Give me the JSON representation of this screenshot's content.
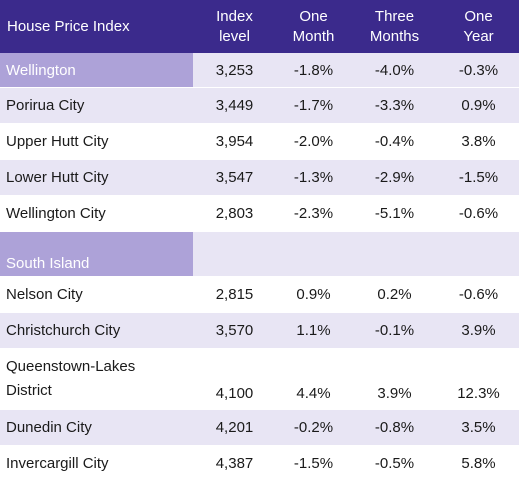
{
  "headers": {
    "name": "House Price Index",
    "index": [
      "Index",
      "level"
    ],
    "one_month": [
      "One",
      "Month"
    ],
    "three_months": [
      "Three",
      "Months"
    ],
    "one_year": [
      "One",
      "Year"
    ]
  },
  "regions": [
    {
      "name": "Wellington",
      "summary": {
        "index": "3,253",
        "one_month": "-1.8%",
        "three_months": "-4.0%",
        "one_year": "-0.3%"
      },
      "rows": [
        {
          "name": "Porirua City",
          "index": "3,449",
          "one_month": "-1.7%",
          "three_months": "-3.3%",
          "one_year": "0.9%"
        },
        {
          "name": "Upper Hutt City",
          "index": "3,954",
          "one_month": "-2.0%",
          "three_months": "-0.4%",
          "one_year": "3.8%"
        },
        {
          "name": "Lower Hutt City",
          "index": "3,547",
          "one_month": "-1.3%",
          "three_months": "-2.9%",
          "one_year": "-1.5%"
        },
        {
          "name": "Wellington City",
          "index": "2,803",
          "one_month": "-2.3%",
          "three_months": "-5.1%",
          "one_year": "-0.6%"
        }
      ]
    },
    {
      "name": "South Island",
      "rows": [
        {
          "name": "Nelson City",
          "index": "2,815",
          "one_month": "0.9%",
          "three_months": "0.2%",
          "one_year": "-0.6%"
        },
        {
          "name": "Christchurch City",
          "index": "3,570",
          "one_month": "1.1%",
          "three_months": "-0.1%",
          "one_year": "3.9%"
        },
        {
          "name_lines": [
            "Queenstown-Lakes",
            "District"
          ],
          "index": "4,100",
          "one_month": "4.4%",
          "three_months": "3.9%",
          "one_year": "12.3%"
        },
        {
          "name": "Dunedin City",
          "index": "4,201",
          "one_month": "-0.2%",
          "three_months": "-0.8%",
          "one_year": "3.5%"
        },
        {
          "name": "Invercargill City",
          "index": "4,387",
          "one_month": "-1.5%",
          "three_months": "-0.5%",
          "one_year": "5.8%"
        }
      ]
    }
  ],
  "colors": {
    "header_bg": "#3b2a8c",
    "region_bg": "#ada2d8",
    "band_bg": "#e8e5f4"
  }
}
